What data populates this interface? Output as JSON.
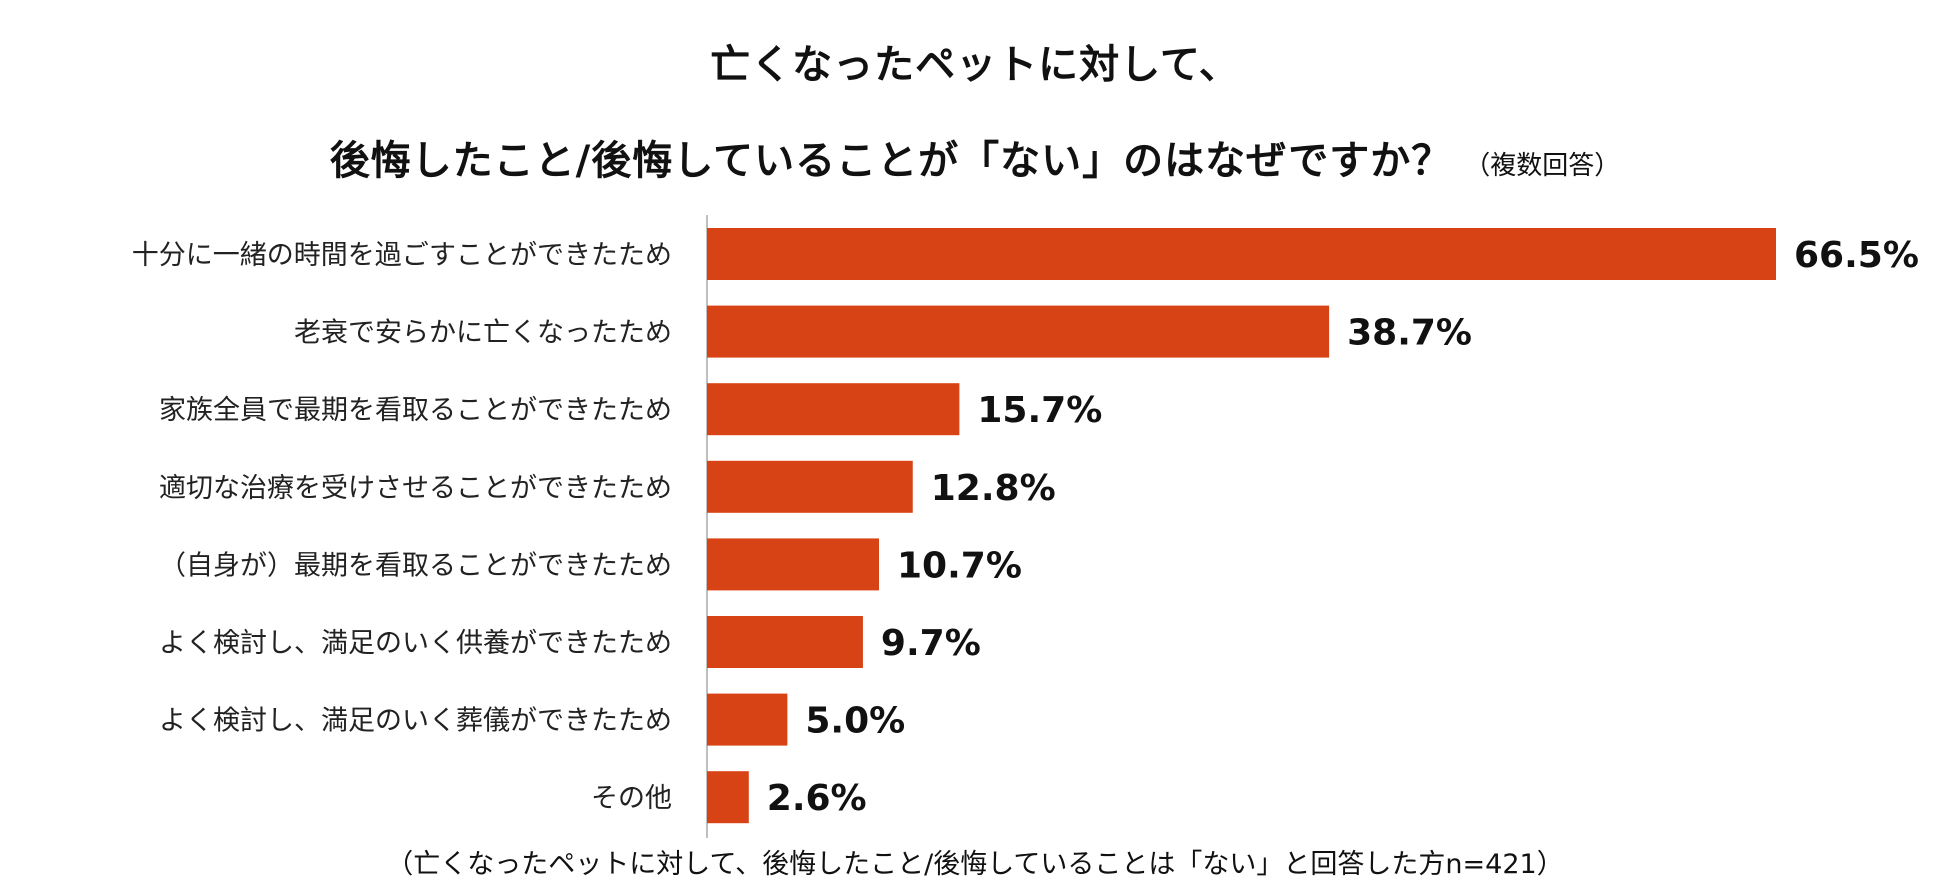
{
  "title": {
    "line1": "亡くなったペットに対して、",
    "line2": "後悔したこと/後悔していることが「ない」のはなぜですか？",
    "note": "（複数回答）"
  },
  "footnote": "（亡くなったペットに対して、後悔したこと/後悔していることは「ない」と回答した方n=421）",
  "colors": {
    "bar": "#D84315",
    "axis": "#BFBFBF",
    "label_dark": "#111111",
    "label_gray": "#3A3A3A"
  },
  "chart_data": {
    "type": "bar",
    "orientation": "horizontal",
    "categories": [
      "十分に一緒の時間を過ごすことができたため",
      "老衰で安らかに亡くなったため",
      "家族全員で最期を看取ることができたため",
      "適切な治療を受けさせることができたため",
      "（自身が）最期を看取ることができたため",
      "よく検討し、満足のいく供養ができたため",
      "よく検討し、満足のいく葬儀ができたため",
      "その他"
    ],
    "values": [
      66.5,
      38.7,
      15.7,
      12.8,
      10.7,
      9.7,
      5.0,
      2.6
    ],
    "value_labels": [
      "66.5%",
      "38.7%",
      "15.7%",
      "12.8%",
      "10.7%",
      "9.7%",
      "5.0%",
      "2.6%"
    ],
    "unit": "%",
    "xlim": [
      0,
      66.5
    ],
    "grid": false,
    "legend": "none"
  }
}
